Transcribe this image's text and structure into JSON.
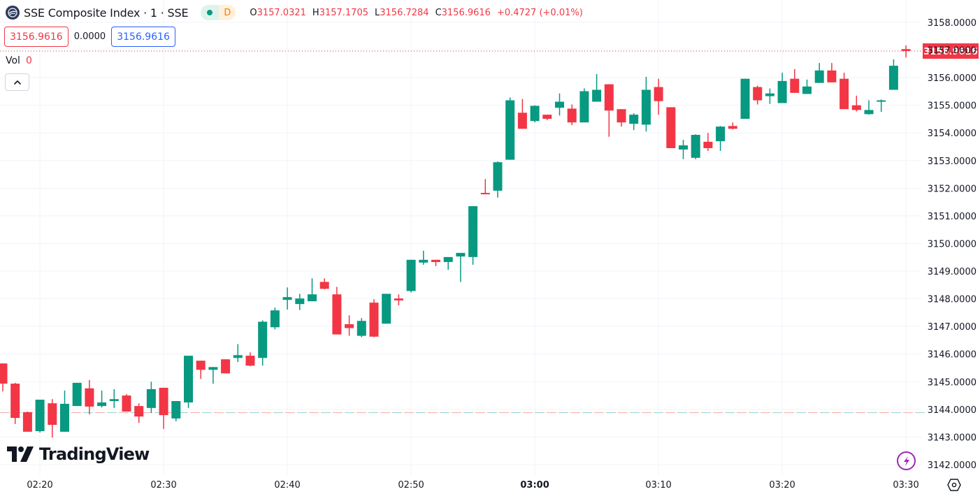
{
  "header": {
    "symbol_title": "SSE Composite Index · 1 · SSE",
    "logo_icon": "sse-globe-icon",
    "market_status_icon": "market-open-dot-icon",
    "delay_badge": "D",
    "ohlc": {
      "o_label": "O",
      "o_value": "3157.0321",
      "h_label": "H",
      "h_value": "3157.1705",
      "l_label": "L",
      "l_value": "3156.7284",
      "c_label": "C",
      "c_value": "3156.9616",
      "change": "+0.4727 (+0.01%)"
    }
  },
  "quote": {
    "sell_price": "3156.9616",
    "spread": "0.0000",
    "buy_price": "3156.9616"
  },
  "volume": {
    "label": "Vol",
    "value": "0"
  },
  "controls": {
    "collapse_icon": "chevron-up-icon",
    "settings_icon": "hexagon-settings-icon",
    "bolt_icon": "lightning-bolt-icon"
  },
  "branding": {
    "logo_text": "TradingView"
  },
  "colors": {
    "up": "#089981",
    "down": "#f23645",
    "grid": "#f0f3fa",
    "text": "#131722",
    "buy_blue": "#2962ff",
    "bolt_purple": "#9c27b0"
  },
  "current_price_label": "3156.9616",
  "chart_data": {
    "type": "candlestick",
    "title": "SSE Composite Index · 1 · SSE",
    "interval": "1 minute",
    "xlabel": "",
    "ylabel": "",
    "ylim": [
      3141.6,
      3158.8
    ],
    "grid": true,
    "y_ticks": [
      "3158.0000",
      "3157.0000",
      "3156.0000",
      "3155.0000",
      "3154.0000",
      "3153.0000",
      "3152.0000",
      "3151.0000",
      "3150.0000",
      "3149.0000",
      "3148.0000",
      "3147.0000",
      "3146.0000",
      "3145.0000",
      "3144.0000",
      "3143.0000",
      "3142.0000"
    ],
    "x_ticks": [
      {
        "label": "02:20",
        "minute": 3,
        "bold": false
      },
      {
        "label": "02:30",
        "minute": 13,
        "bold": false
      },
      {
        "label": "02:40",
        "minute": 23,
        "bold": false
      },
      {
        "label": "02:50",
        "minute": 33,
        "bold": false
      },
      {
        "label": "03:00",
        "minute": 43,
        "bold": true
      },
      {
        "label": "03:10",
        "minute": 53,
        "bold": false
      },
      {
        "label": "03:20",
        "minute": 63,
        "bold": false
      },
      {
        "label": "03:30",
        "minute": 73,
        "bold": false
      }
    ],
    "prev_close_line": 3143.88,
    "last_price": 3156.9616,
    "candles": [
      {
        "t": "02:17",
        "o": 3145.66,
        "h": 3145.66,
        "l": 3144.65,
        "c": 3144.93
      },
      {
        "t": "02:18",
        "o": 3144.93,
        "h": 3144.96,
        "l": 3143.47,
        "c": 3143.69
      },
      {
        "t": "02:19",
        "o": 3143.9,
        "h": 3143.92,
        "l": 3143.19,
        "c": 3143.19
      },
      {
        "t": "02:20",
        "o": 3143.21,
        "h": 3144.35,
        "l": 3143.16,
        "c": 3144.35
      },
      {
        "t": "02:21",
        "o": 3144.22,
        "h": 3144.37,
        "l": 3142.98,
        "c": 3143.44
      },
      {
        "t": "02:22",
        "o": 3143.19,
        "h": 3144.68,
        "l": 3143.19,
        "c": 3144.2
      },
      {
        "t": "02:23",
        "o": 3144.12,
        "h": 3144.96,
        "l": 3144.12,
        "c": 3144.96
      },
      {
        "t": "02:24",
        "o": 3144.76,
        "h": 3145.06,
        "l": 3143.82,
        "c": 3144.1
      },
      {
        "t": "02:25",
        "o": 3144.12,
        "h": 3144.68,
        "l": 3144.07,
        "c": 3144.25
      },
      {
        "t": "02:26",
        "o": 3144.3,
        "h": 3144.73,
        "l": 3144.05,
        "c": 3144.37
      },
      {
        "t": "02:27",
        "o": 3144.5,
        "h": 3144.55,
        "l": 3143.92,
        "c": 3143.92
      },
      {
        "t": "02:28",
        "o": 3144.12,
        "h": 3144.22,
        "l": 3143.51,
        "c": 3143.74
      },
      {
        "t": "02:29",
        "o": 3144.05,
        "h": 3145.0,
        "l": 3143.87,
        "c": 3144.73
      },
      {
        "t": "02:30",
        "o": 3144.78,
        "h": 3144.78,
        "l": 3143.29,
        "c": 3143.79
      },
      {
        "t": "02:31",
        "o": 3143.67,
        "h": 3144.3,
        "l": 3143.57,
        "c": 3144.3
      },
      {
        "t": "02:32",
        "o": 3144.25,
        "h": 3145.94,
        "l": 3144.05,
        "c": 3145.94
      },
      {
        "t": "02:33",
        "o": 3145.76,
        "h": 3145.76,
        "l": 3145.1,
        "c": 3145.43
      },
      {
        "t": "02:34",
        "o": 3145.43,
        "h": 3145.53,
        "l": 3144.93,
        "c": 3145.53
      },
      {
        "t": "02:35",
        "o": 3145.81,
        "h": 3145.81,
        "l": 3145.4,
        "c": 3145.3
      },
      {
        "t": "02:36",
        "o": 3145.86,
        "h": 3146.36,
        "l": 3145.71,
        "c": 3145.96
      },
      {
        "t": "02:37",
        "o": 3145.94,
        "h": 3146.06,
        "l": 3145.56,
        "c": 3145.58
      },
      {
        "t": "02:38",
        "o": 3145.86,
        "h": 3147.22,
        "l": 3145.58,
        "c": 3147.17
      },
      {
        "t": "02:39",
        "o": 3146.97,
        "h": 3147.68,
        "l": 3146.89,
        "c": 3147.58
      },
      {
        "t": "02:40",
        "o": 3147.96,
        "h": 3148.41,
        "l": 3147.61,
        "c": 3148.06
      },
      {
        "t": "02:41",
        "o": 3147.81,
        "h": 3148.18,
        "l": 3147.59,
        "c": 3148.01
      },
      {
        "t": "02:42",
        "o": 3147.91,
        "h": 3148.74,
        "l": 3147.91,
        "c": 3148.16
      },
      {
        "t": "02:43",
        "o": 3148.61,
        "h": 3148.74,
        "l": 3148.34,
        "c": 3148.36
      },
      {
        "t": "02:44",
        "o": 3148.16,
        "h": 3148.43,
        "l": 3146.71,
        "c": 3146.71
      },
      {
        "t": "02:45",
        "o": 3147.08,
        "h": 3147.4,
        "l": 3146.66,
        "c": 3146.94
      },
      {
        "t": "02:46",
        "o": 3146.66,
        "h": 3147.3,
        "l": 3146.61,
        "c": 3147.2
      },
      {
        "t": "02:47",
        "o": 3147.86,
        "h": 3147.98,
        "l": 3146.61,
        "c": 3146.63
      },
      {
        "t": "02:48",
        "o": 3147.1,
        "h": 3148.18,
        "l": 3147.1,
        "c": 3148.18
      },
      {
        "t": "02:49",
        "o": 3148.01,
        "h": 3148.16,
        "l": 3147.76,
        "c": 3147.94
      },
      {
        "t": "02:50",
        "o": 3148.28,
        "h": 3149.41,
        "l": 3148.23,
        "c": 3149.41
      },
      {
        "t": "02:51",
        "o": 3149.31,
        "h": 3149.74,
        "l": 3149.23,
        "c": 3149.41
      },
      {
        "t": "02:52",
        "o": 3149.41,
        "h": 3149.41,
        "l": 3149.18,
        "c": 3149.33
      },
      {
        "t": "02:53",
        "o": 3149.33,
        "h": 3149.49,
        "l": 3149.05,
        "c": 3149.51
      },
      {
        "t": "02:54",
        "o": 3149.53,
        "h": 3149.64,
        "l": 3148.61,
        "c": 3149.66
      },
      {
        "t": "02:55",
        "o": 3149.51,
        "h": 3149.51,
        "l": 3149.23,
        "c": 3151.35
      },
      {
        "t": "02:56",
        "o": 3151.83,
        "h": 3152.33,
        "l": 3151.78,
        "c": 3151.78
      },
      {
        "t": "02:57",
        "o": 3151.91,
        "h": 3152.97,
        "l": 3151.66,
        "c": 3152.94
      },
      {
        "t": "02:58",
        "o": 3153.03,
        "h": 3155.28,
        "l": 3153.03,
        "c": 3155.18
      },
      {
        "t": "02:59",
        "o": 3154.73,
        "h": 3155.23,
        "l": 3154.15,
        "c": 3154.15
      },
      {
        "t": "03:00",
        "o": 3154.43,
        "h": 3155.0,
        "l": 3154.38,
        "c": 3154.98
      },
      {
        "t": "03:01",
        "o": 3154.66,
        "h": 3154.66,
        "l": 3154.46,
        "c": 3154.51
      },
      {
        "t": "03:02",
        "o": 3154.91,
        "h": 3155.43,
        "l": 3154.63,
        "c": 3155.13
      },
      {
        "t": "03:03",
        "o": 3154.88,
        "h": 3155.03,
        "l": 3154.28,
        "c": 3154.38
      },
      {
        "t": "03:04",
        "o": 3154.38,
        "h": 3155.61,
        "l": 3154.38,
        "c": 3155.51
      },
      {
        "t": "03:05",
        "o": 3155.13,
        "h": 3156.13,
        "l": 3155.13,
        "c": 3155.56
      },
      {
        "t": "03:06",
        "o": 3155.76,
        "h": 3155.76,
        "l": 3153.86,
        "c": 3154.81
      },
      {
        "t": "03:07",
        "o": 3154.86,
        "h": 3154.86,
        "l": 3154.23,
        "c": 3154.38
      },
      {
        "t": "03:08",
        "o": 3154.33,
        "h": 3154.71,
        "l": 3154.1,
        "c": 3154.66
      },
      {
        "t": "03:09",
        "o": 3154.3,
        "h": 3156.03,
        "l": 3154.05,
        "c": 3155.56
      },
      {
        "t": "03:10",
        "o": 3155.66,
        "h": 3155.96,
        "l": 3154.66,
        "c": 3155.15
      },
      {
        "t": "03:11",
        "o": 3154.93,
        "h": 3154.93,
        "l": 3153.45,
        "c": 3153.45
      },
      {
        "t": "03:12",
        "o": 3153.4,
        "h": 3153.75,
        "l": 3153.05,
        "c": 3153.55
      },
      {
        "t": "03:13",
        "o": 3153.1,
        "h": 3153.95,
        "l": 3153.05,
        "c": 3153.93
      },
      {
        "t": "03:14",
        "o": 3153.68,
        "h": 3154.0,
        "l": 3153.35,
        "c": 3153.45
      },
      {
        "t": "03:15",
        "o": 3153.7,
        "h": 3154.25,
        "l": 3153.35,
        "c": 3154.23
      },
      {
        "t": "03:16",
        "o": 3154.25,
        "h": 3154.38,
        "l": 3154.13,
        "c": 3154.15
      },
      {
        "t": "03:17",
        "o": 3154.51,
        "h": 3155.96,
        "l": 3154.51,
        "c": 3155.96
      },
      {
        "t": "03:18",
        "o": 3155.66,
        "h": 3155.71,
        "l": 3155.03,
        "c": 3155.18
      },
      {
        "t": "03:19",
        "o": 3155.33,
        "h": 3155.61,
        "l": 3155.05,
        "c": 3155.43
      },
      {
        "t": "03:20",
        "o": 3155.08,
        "h": 3156.18,
        "l": 3155.08,
        "c": 3155.88
      },
      {
        "t": "03:21",
        "o": 3155.96,
        "h": 3156.31,
        "l": 3155.45,
        "c": 3155.45
      },
      {
        "t": "03:22",
        "o": 3155.41,
        "h": 3155.93,
        "l": 3155.41,
        "c": 3155.68
      },
      {
        "t": "03:23",
        "o": 3155.81,
        "h": 3156.53,
        "l": 3155.81,
        "c": 3156.26
      },
      {
        "t": "03:24",
        "o": 3156.26,
        "h": 3156.53,
        "l": 3155.83,
        "c": 3155.83
      },
      {
        "t": "03:25",
        "o": 3155.96,
        "h": 3156.18,
        "l": 3154.86,
        "c": 3154.86
      },
      {
        "t": "03:26",
        "o": 3155.0,
        "h": 3155.35,
        "l": 3154.78,
        "c": 3154.83
      },
      {
        "t": "03:27",
        "o": 3154.68,
        "h": 3155.18,
        "l": 3154.66,
        "c": 3154.83
      },
      {
        "t": "03:28",
        "o": 3155.18,
        "h": 3155.21,
        "l": 3154.76,
        "c": 3155.18
      },
      {
        "t": "03:29",
        "o": 3155.56,
        "h": 3156.66,
        "l": 3155.56,
        "c": 3156.43
      },
      {
        "t": "03:30",
        "o": 3157.0321,
        "h": 3157.1705,
        "l": 3156.7284,
        "c": 3156.9616
      }
    ]
  }
}
